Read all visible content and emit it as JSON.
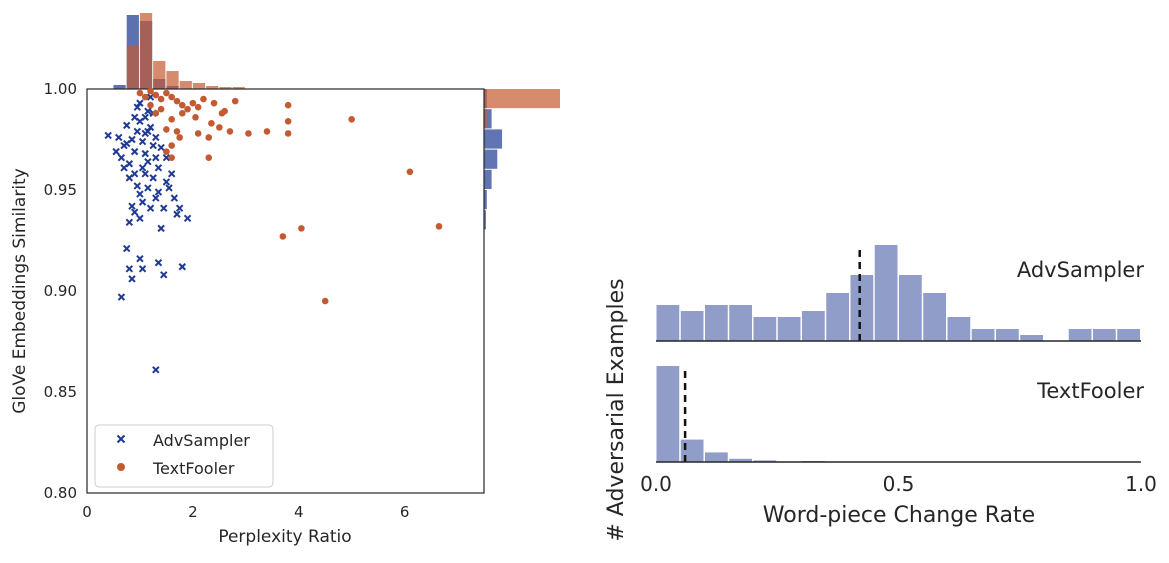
{
  "colors": {
    "advsampler": "#1f3a93",
    "textfooler": "#c45a32",
    "right_hist": "#8f9dc8"
  },
  "chart_data": [
    {
      "type": "scatter",
      "xlabel": "Perplexity Ratio",
      "ylabel": "GloVe Embeddings Similarity",
      "xlim": [
        0,
        7.5
      ],
      "ylim": [
        0.8,
        1.0
      ],
      "xticks": [
        0,
        2,
        4,
        6
      ],
      "yticks": [
        0.8,
        0.85,
        0.9,
        0.95,
        1.0
      ],
      "ytick_labels": [
        "0.80",
        "0.85",
        "0.90",
        "0.95",
        "1.00"
      ],
      "legend": {
        "placement": "lower-left"
      },
      "series": [
        {
          "name": "AdvSampler",
          "marker": "x",
          "points": [
            [
              0.4,
              0.977
            ],
            [
              0.6,
              0.976
            ],
            [
              0.55,
              0.969
            ],
            [
              0.7,
              0.972
            ],
            [
              0.65,
              0.966
            ],
            [
              0.8,
              0.963
            ],
            [
              0.85,
              0.975
            ],
            [
              0.75,
              0.982
            ],
            [
              0.9,
              0.986
            ],
            [
              0.95,
              0.979
            ],
            [
              1.0,
              0.984
            ],
            [
              1.05,
              0.974
            ],
            [
              1.1,
              0.968
            ],
            [
              1.15,
              0.979
            ],
            [
              1.2,
              0.981
            ],
            [
              1.25,
              0.972
            ],
            [
              1.3,
              0.966
            ],
            [
              0.9,
              0.958
            ],
            [
              0.95,
              0.952
            ],
            [
              1.0,
              0.948
            ],
            [
              1.1,
              0.958
            ],
            [
              1.15,
              0.951
            ],
            [
              0.8,
              0.956
            ],
            [
              0.7,
              0.961
            ],
            [
              1.35,
              0.961
            ],
            [
              1.4,
              0.971
            ],
            [
              1.5,
              0.966
            ],
            [
              1.6,
              0.958
            ],
            [
              0.85,
              0.942
            ],
            [
              0.9,
              0.939
            ],
            [
              1.0,
              0.936
            ],
            [
              1.05,
              0.944
            ],
            [
              1.2,
              0.941
            ],
            [
              1.3,
              0.946
            ],
            [
              0.8,
              0.934
            ],
            [
              1.45,
              0.941
            ],
            [
              1.55,
              0.951
            ],
            [
              1.65,
              0.946
            ],
            [
              1.7,
              0.938
            ],
            [
              1.75,
              0.941
            ],
            [
              1.9,
              0.936
            ],
            [
              1.4,
              0.931
            ],
            [
              1.8,
              0.912
            ],
            [
              0.75,
              0.921
            ],
            [
              0.65,
              0.897
            ],
            [
              0.85,
              0.906
            ],
            [
              1.0,
              0.916
            ],
            [
              1.05,
              0.911
            ],
            [
              1.35,
              0.914
            ],
            [
              1.45,
              0.908
            ],
            [
              1.3,
              0.861
            ],
            [
              0.8,
              0.911
            ],
            [
              1.1,
              0.986
            ],
            [
              0.95,
              0.991
            ],
            [
              1.15,
              0.989
            ],
            [
              1.0,
              0.993
            ],
            [
              1.25,
              0.988
            ],
            [
              1.2,
              0.996
            ],
            [
              1.1,
              0.978
            ],
            [
              0.9,
              0.969
            ],
            [
              0.75,
              0.973
            ],
            [
              1.3,
              0.976
            ],
            [
              1.05,
              0.961
            ],
            [
              1.25,
              0.956
            ],
            [
              1.15,
              0.964
            ],
            [
              1.5,
              0.954
            ],
            [
              1.35,
              0.949
            ]
          ]
        },
        {
          "name": "TextFooler",
          "marker": "o",
          "points": [
            [
              1.0,
              0.998
            ],
            [
              1.1,
              0.996
            ],
            [
              1.2,
              0.999
            ],
            [
              1.3,
              0.997
            ],
            [
              1.4,
              0.995
            ],
            [
              1.5,
              0.998
            ],
            [
              1.6,
              0.996
            ],
            [
              1.7,
              0.994
            ],
            [
              1.8,
              0.992
            ],
            [
              1.9,
              0.99
            ],
            [
              2.0,
              0.993
            ],
            [
              2.1,
              0.991
            ],
            [
              2.2,
              0.995
            ],
            [
              2.4,
              0.993
            ],
            [
              2.6,
              0.989
            ],
            [
              2.8,
              0.994
            ],
            [
              1.4,
              0.99
            ],
            [
              1.6,
              0.985
            ],
            [
              1.8,
              0.988
            ],
            [
              1.5,
              0.98
            ],
            [
              1.7,
              0.979
            ],
            [
              1.6,
              0.972
            ],
            [
              1.75,
              0.976
            ],
            [
              2.1,
              0.978
            ],
            [
              2.3,
              0.976
            ],
            [
              2.5,
              0.981
            ],
            [
              2.7,
              0.979
            ],
            [
              3.05,
              0.978
            ],
            [
              3.4,
              0.979
            ],
            [
              3.8,
              0.978
            ],
            [
              3.8,
              0.984
            ],
            [
              3.8,
              0.992
            ],
            [
              2.3,
              0.966
            ],
            [
              1.6,
              0.966
            ],
            [
              5.0,
              0.985
            ],
            [
              6.1,
              0.959
            ],
            [
              3.7,
              0.927
            ],
            [
              4.05,
              0.931
            ],
            [
              6.65,
              0.932
            ],
            [
              4.5,
              0.895
            ],
            [
              1.5,
              0.969
            ],
            [
              1.2,
              0.992
            ],
            [
              1.3,
              0.988
            ],
            [
              2.05,
              0.986
            ],
            [
              2.35,
              0.983
            ],
            [
              2.55,
              0.988
            ]
          ]
        }
      ],
      "top_histogram": {
        "bins": [
          0.25,
          0.5,
          0.75,
          1.0,
          1.25,
          1.5,
          1.75,
          2.0,
          2.25,
          2.5,
          2.75,
          3.0
        ],
        "advsampler": [
          0,
          4,
          74,
          68,
          10,
          3,
          0,
          0,
          0,
          0,
          0,
          0
        ],
        "textfooler": [
          0,
          0,
          44,
          76,
          28,
          18,
          8,
          6,
          3,
          2,
          2,
          0
        ]
      },
      "right_histogram": {
        "bins": [
          0.93,
          0.94,
          0.95,
          0.96,
          0.97,
          0.98,
          0.99,
          1.0
        ],
        "advsampler": [
          2,
          3,
          8,
          14,
          19,
          8,
          3
        ],
        "textfooler": [
          0,
          0,
          0,
          0,
          0,
          3,
          80
        ]
      }
    },
    {
      "type": "bar",
      "xlabel": "Word-piece Change Rate",
      "ylabel": "# Adversarial Examples",
      "xlim": [
        0,
        1.0
      ],
      "xticks": [
        0.0,
        0.5,
        1.0
      ],
      "xtick_labels": [
        "0.0",
        "0.5",
        "1.0"
      ],
      "panels": [
        {
          "name": "AdvSampler",
          "bin_width": 0.05,
          "values": [
            6,
            5,
            6,
            6,
            4,
            4,
            5,
            8,
            11,
            16,
            11,
            8,
            4,
            2,
            2,
            1,
            0,
            2,
            2,
            2
          ],
          "dashed_line": 0.42
        },
        {
          "name": "TextFooler",
          "bin_width": 0.05,
          "values": [
            30,
            7,
            3,
            1,
            0.5,
            0,
            0.3,
            0,
            0,
            0,
            0,
            0,
            0,
            0,
            0,
            0,
            0,
            0,
            0,
            0
          ],
          "dashed_line": 0.06
        }
      ]
    }
  ]
}
